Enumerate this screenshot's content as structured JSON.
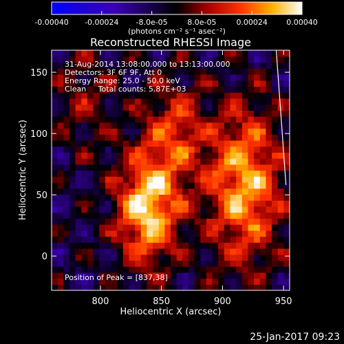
{
  "chart_data": {
    "type": "heatmap",
    "title": "Reconstructed RHESSI Image",
    "xlabel": "Heliocentric X (arcsec)",
    "ylabel": "Heliocentric Y (arcsec)",
    "xlim": [
      760,
      955
    ],
    "ylim": [
      -28,
      168
    ],
    "x_ticks": [
      800,
      850,
      900,
      950
    ],
    "y_ticks": [
      0,
      50,
      100,
      150
    ],
    "colorbar": {
      "unit_label": "(photons cm⁻² s⁻¹ asec⁻²)",
      "range": [
        -0.0004,
        0.0004
      ],
      "tick_values": [
        -0.0004,
        -0.00024,
        -8e-05,
        8e-05,
        0.00024,
        0.0004
      ],
      "tick_labels": [
        "-0.00040",
        "-0.00024",
        "-8.0e-05",
        "8.0e-05",
        "0.00024",
        "0.00040"
      ],
      "colors": [
        "#0000ff",
        "#000000",
        "#ffffff"
      ]
    },
    "annotations": [
      "31-Aug-2014 13:08:00.000 to 13:13:00.000",
      "Detectors: 3F 6F 9F, Att 0",
      "Energy Range: 25.0 - 50.0 keV",
      "Clean     Total counts: 5.87E+03"
    ],
    "peak_label": "Position of Peak = [837,38]",
    "peak_position": [
      837,
      38
    ],
    "sources": [
      {
        "x": 838,
        "y": 38,
        "peak": 0.0004
      },
      {
        "x": 918,
        "y": 58,
        "peak": 0.00036
      },
      {
        "x": 860,
        "y": 100,
        "peak": 0.00022
      },
      {
        "x": 788,
        "y": 130,
        "peak": 0.00012
      }
    ],
    "limb_points": [
      [
        944,
        168
      ],
      [
        952,
        58
      ]
    ]
  },
  "footer": {
    "date": "25-Jan-2017 09:23"
  }
}
